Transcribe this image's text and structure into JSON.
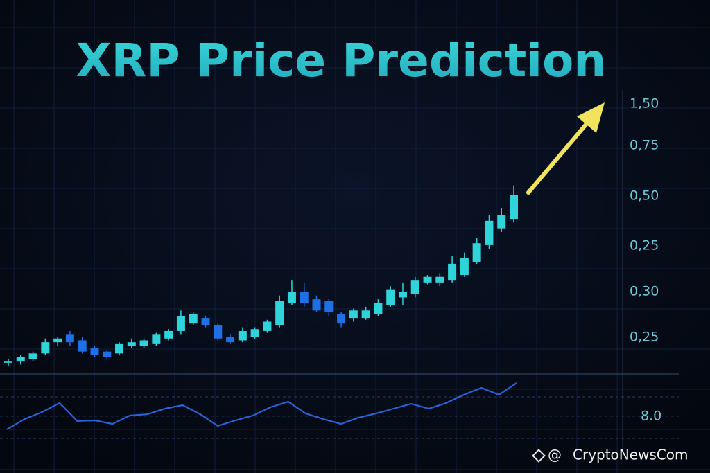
{
  "chart_data": {
    "type": "candlestick",
    "title": "XRP Price Prediction",
    "y_labels": [
      "1,50",
      "0,75",
      "0,50",
      "0,25",
      "0,30",
      "0,25"
    ],
    "ylim": [
      0.05,
      1.57
    ],
    "up_color": "#2fd3da",
    "down_color": "#1f6fe6",
    "open": [
      0.11,
      0.12,
      0.13,
      0.16,
      0.22,
      0.26,
      0.23,
      0.19,
      0.17,
      0.16,
      0.2,
      0.2,
      0.21,
      0.24,
      0.28,
      0.32,
      0.35,
      0.31,
      0.25,
      0.23,
      0.25,
      0.28,
      0.31,
      0.43,
      0.49,
      0.45,
      0.44,
      0.37,
      0.35,
      0.35,
      0.37,
      0.42,
      0.46,
      0.48,
      0.54,
      0.54,
      0.55,
      0.58,
      0.65,
      0.74,
      0.83,
      0.88
    ],
    "close": [
      0.12,
      0.14,
      0.16,
      0.22,
      0.24,
      0.22,
      0.17,
      0.15,
      0.14,
      0.21,
      0.22,
      0.23,
      0.26,
      0.28,
      0.36,
      0.37,
      0.31,
      0.24,
      0.22,
      0.28,
      0.29,
      0.33,
      0.44,
      0.49,
      0.43,
      0.39,
      0.38,
      0.32,
      0.39,
      0.39,
      0.43,
      0.5,
      0.49,
      0.55,
      0.57,
      0.57,
      0.64,
      0.67,
      0.75,
      0.87,
      0.9,
      1.01
    ],
    "high": [
      0.13,
      0.15,
      0.17,
      0.24,
      0.25,
      0.28,
      0.25,
      0.2,
      0.18,
      0.22,
      0.24,
      0.24,
      0.27,
      0.29,
      0.39,
      0.38,
      0.36,
      0.32,
      0.26,
      0.3,
      0.3,
      0.34,
      0.47,
      0.55,
      0.54,
      0.47,
      0.45,
      0.38,
      0.4,
      0.41,
      0.45,
      0.52,
      0.54,
      0.57,
      0.58,
      0.59,
      0.68,
      0.7,
      0.78,
      0.9,
      0.94,
      1.06
    ],
    "low": [
      0.09,
      0.1,
      0.12,
      0.15,
      0.2,
      0.2,
      0.16,
      0.14,
      0.13,
      0.15,
      0.19,
      0.19,
      0.2,
      0.23,
      0.26,
      0.31,
      0.3,
      0.23,
      0.21,
      0.22,
      0.24,
      0.27,
      0.3,
      0.42,
      0.41,
      0.38,
      0.36,
      0.3,
      0.33,
      0.34,
      0.36,
      0.41,
      0.42,
      0.46,
      0.53,
      0.52,
      0.54,
      0.57,
      0.64,
      0.72,
      0.81,
      0.86
    ],
    "indicator": {
      "color": "#2a62d8",
      "ylim": [
        6.6,
        10.0
      ],
      "yticks": [
        {
          "value": 8,
          "label": "8.0"
        }
      ],
      "values": [
        7.32,
        7.85,
        8.21,
        8.68,
        7.75,
        7.78,
        7.6,
        8.03,
        8.1,
        8.39,
        8.57,
        8.1,
        7.5,
        7.78,
        8.03,
        8.46,
        8.75,
        8.14,
        7.85,
        7.6,
        7.92,
        8.14,
        8.39,
        8.64,
        8.39,
        8.68,
        9.11,
        9.46,
        9.11,
        9.71
      ]
    },
    "watermark": "CryptoNewsCom"
  }
}
